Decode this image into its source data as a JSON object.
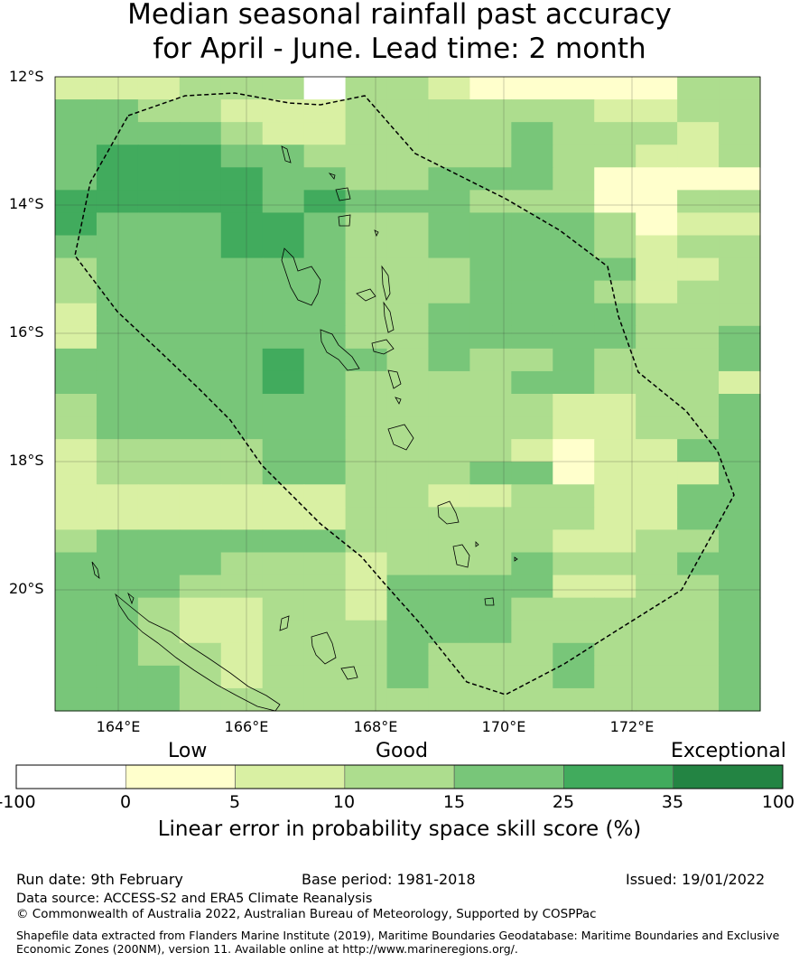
{
  "title_line1": "Median seasonal rainfall past accuracy",
  "title_line2": "for April - June. Lead time: 2 month",
  "map": {
    "lon_labels": [
      "164°E",
      "166°E",
      "168°E",
      "170°E",
      "172°E"
    ],
    "lat_labels": [
      "12°S",
      "14°S",
      "16°S",
      "18°S",
      "20°S"
    ]
  },
  "colorbar": {
    "category_labels": {
      "low": "Low",
      "good": "Good",
      "exceptional": "Exceptional"
    },
    "ticks": [
      "-100",
      "0",
      "5",
      "10",
      "15",
      "25",
      "35",
      "100"
    ],
    "colors": [
      "#ffffff",
      "#ffffcc",
      "#d9f0a3",
      "#addd8e",
      "#78c679",
      "#41ab5d",
      "#238443"
    ],
    "axis_title": "Linear error in probability space skill score (%)"
  },
  "grid": {
    "rows": [
      "22233303321111133",
      "44332223333332233",
      "44443223333433323",
      "45554433333433223",
      "45555443344431111",
      "55555454443331133",
      "54445543344443122",
      "44445543344443233",
      "34444443334444223",
      "34444443334443233",
      "24444443344444333",
      "24444443344444334",
      "44444544343343334",
      "44444543333443332",
      "34444443333322334",
      "34444443333322334",
      "23333443333212244",
      "23333443334412224",
      "22222223322332244",
      "22222223333332244",
      "34444443333322334",
      "44443332333433344",
      "44433332444422334",
      "44322332444333334",
      "44322333444333334",
      "44332333433343334",
      "44432333433343334",
      "44433333333333334"
    ]
  },
  "footer": {
    "run_date": "Run date: 9th February",
    "base_period": "Base period: 1981-2018",
    "issued": "Issued: 19/01/2022",
    "data_source": "Data source: ACCESS-S2 and ERA5 Climate Reanalysis",
    "copyright": "© Commonwealth of Australia 2022, Australian Bureau of Meteorology, Supported by COSPPac",
    "shapefile_1": "Shapefile data extracted from Flanders Marine Institute (2019), Maritime Boundaries Geodatabase: Maritime Boundaries and Exclusive",
    "shapefile_2": "Economic Zones (200NM), version 11. Available online at http://www.marineregions.org/."
  }
}
